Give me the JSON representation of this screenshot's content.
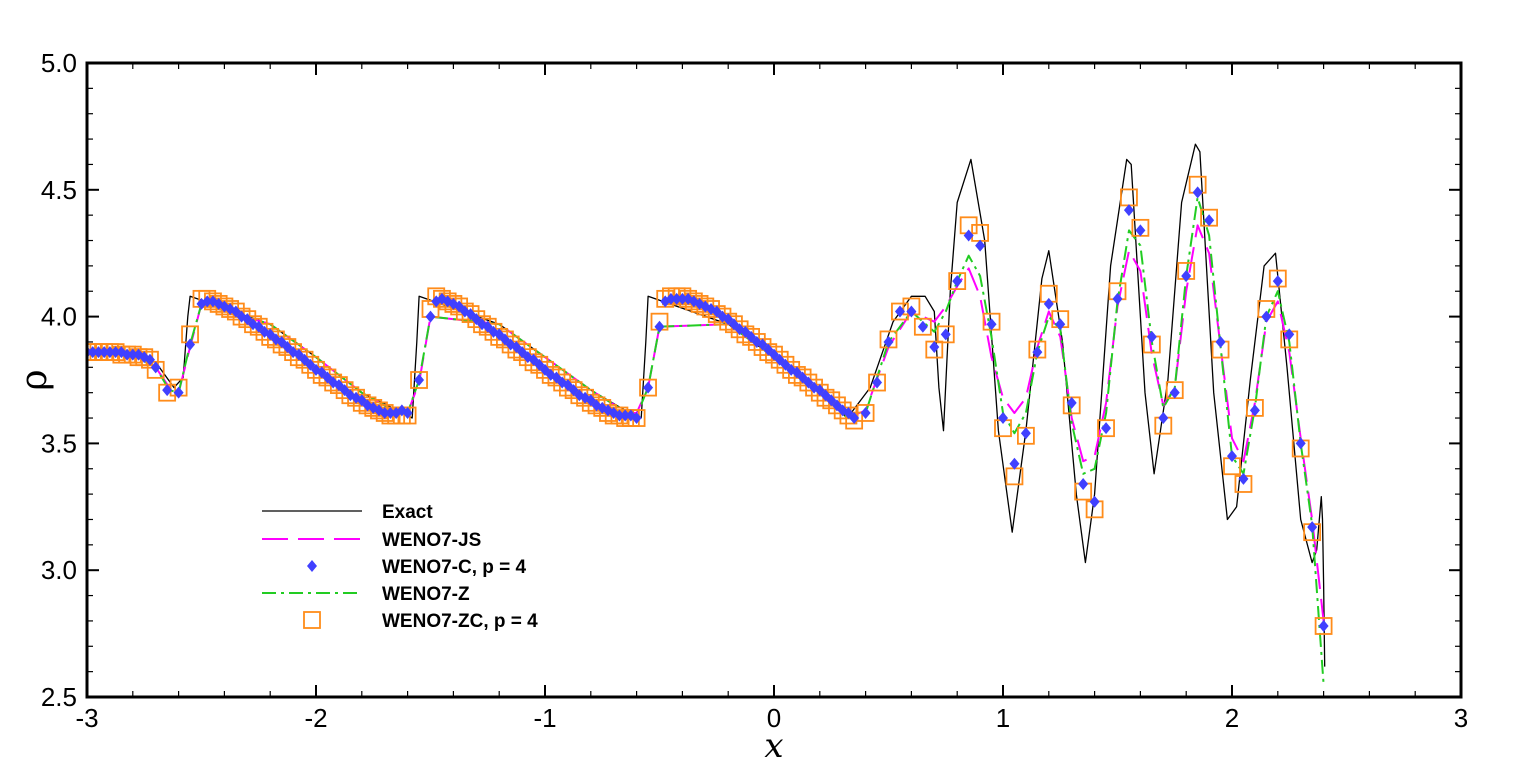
{
  "chart_data": {
    "type": "line",
    "title": "",
    "xlabel": "x",
    "ylabel": "ρ",
    "xlim": [
      -3,
      3
    ],
    "ylim": [
      2.5,
      5.0
    ],
    "x_ticks": [
      "-3",
      "-2",
      "-1",
      "0",
      "1",
      "2",
      "3"
    ],
    "y_ticks": [
      "2.5",
      "3.0",
      "3.5",
      "4.0",
      "4.5",
      "5.0"
    ],
    "grid": false,
    "legend_position": "lower-left",
    "series": [
      {
        "name": "Exact",
        "style": "solid",
        "color": "#000000",
        "x": [
          -3.0,
          -2.8,
          -2.7,
          -2.62,
          -2.58,
          -2.56,
          -2.55,
          -2.2,
          -2.0,
          -1.8,
          -1.62,
          -1.58,
          -1.56,
          -1.55,
          -1.2,
          -1.0,
          -0.8,
          -0.63,
          -0.58,
          -0.56,
          -0.55,
          -0.2,
          0.0,
          0.2,
          0.32,
          0.42,
          0.52,
          0.6,
          0.66,
          0.7,
          0.72,
          0.74,
          0.77,
          0.8,
          0.86,
          0.92,
          0.98,
          1.04,
          1.1,
          1.17,
          1.2,
          1.26,
          1.32,
          1.36,
          1.4,
          1.47,
          1.54,
          1.56,
          1.62,
          1.66,
          1.72,
          1.78,
          1.84,
          1.86,
          1.92,
          1.98,
          2.02,
          2.08,
          2.14,
          2.19,
          2.24,
          2.3,
          2.35,
          2.37,
          2.39,
          2.395,
          2.4,
          2.405
        ],
        "y": [
          3.86,
          3.85,
          3.82,
          3.72,
          3.76,
          4.0,
          4.08,
          3.97,
          3.84,
          3.7,
          3.62,
          3.6,
          3.9,
          4.08,
          3.97,
          3.84,
          3.71,
          3.62,
          3.6,
          3.9,
          4.08,
          3.97,
          3.84,
          3.7,
          3.6,
          3.72,
          3.98,
          4.08,
          4.08,
          4.02,
          3.72,
          3.55,
          4.1,
          4.45,
          4.62,
          4.3,
          3.55,
          3.15,
          3.55,
          4.15,
          4.26,
          3.9,
          3.3,
          3.03,
          3.3,
          4.2,
          4.62,
          4.6,
          3.7,
          3.38,
          3.75,
          4.45,
          4.68,
          4.65,
          3.7,
          3.2,
          3.25,
          3.75,
          4.2,
          4.25,
          3.8,
          3.2,
          3.03,
          3.08,
          3.29,
          3.2,
          2.95,
          2.62
        ]
      },
      {
        "name": "WENO7-JS",
        "style": "long-dash",
        "color": "#ff00ff",
        "x": [
          -3.0,
          -2.8,
          -2.7,
          -2.64,
          -2.6,
          -2.55,
          -2.5,
          -2.2,
          -2.0,
          -1.8,
          -1.64,
          -1.6,
          -1.55,
          -1.5,
          -1.2,
          -1.0,
          -0.8,
          -0.64,
          -0.6,
          -0.55,
          -0.5,
          -0.2,
          0.0,
          0.2,
          0.32,
          0.4,
          0.5,
          0.6,
          0.7,
          0.75,
          0.8,
          0.85,
          0.9,
          0.95,
          1.0,
          1.05,
          1.1,
          1.15,
          1.2,
          1.25,
          1.3,
          1.35,
          1.4,
          1.45,
          1.5,
          1.55,
          1.6,
          1.65,
          1.7,
          1.75,
          1.8,
          1.85,
          1.9,
          1.95,
          2.0,
          2.05,
          2.1,
          2.15,
          2.2,
          2.25,
          2.3,
          2.35,
          2.4
        ],
        "y": [
          3.86,
          3.85,
          3.8,
          3.72,
          3.7,
          3.88,
          4.05,
          3.97,
          3.84,
          3.7,
          3.62,
          3.62,
          3.74,
          4.0,
          3.97,
          3.84,
          3.71,
          3.62,
          3.62,
          3.72,
          3.96,
          3.97,
          3.84,
          3.7,
          3.6,
          3.63,
          3.88,
          4.02,
          3.98,
          4.04,
          4.12,
          4.19,
          4.08,
          3.84,
          3.68,
          3.62,
          3.68,
          3.88,
          4.02,
          3.92,
          3.6,
          3.43,
          3.45,
          3.66,
          4.04,
          4.26,
          4.18,
          3.85,
          3.65,
          3.72,
          4.1,
          4.36,
          4.25,
          3.88,
          3.52,
          3.43,
          3.66,
          3.98,
          4.06,
          3.86,
          3.52,
          3.2,
          2.8
        ]
      },
      {
        "name": "WENO7-C, p = 4",
        "style": "diamond",
        "color": "#4040ff",
        "x": [
          -3.0,
          -2.975,
          -2.95,
          -2.925,
          -2.9,
          -2.875,
          -2.85,
          -2.825,
          -2.8,
          -2.775,
          -2.75,
          -2.725,
          -2.7,
          -2.65,
          -2.6,
          -2.55,
          -2.5,
          -2.475,
          -2.45,
          -2.425,
          -2.4,
          -2.375,
          -2.35,
          -2.325,
          -2.3,
          -2.275,
          -2.25,
          -2.225,
          -2.2,
          -2.175,
          -2.15,
          -2.125,
          -2.1,
          -2.075,
          -2.05,
          -2.025,
          -2.0,
          -1.975,
          -1.95,
          -1.925,
          -1.9,
          -1.875,
          -1.85,
          -1.825,
          -1.8,
          -1.775,
          -1.75,
          -1.725,
          -1.7,
          -1.675,
          -1.65,
          -1.625,
          -1.6,
          -1.55,
          -1.5,
          -1.475,
          -1.45,
          -1.425,
          -1.4,
          -1.375,
          -1.35,
          -1.325,
          -1.3,
          -1.275,
          -1.25,
          -1.225,
          -1.2,
          -1.175,
          -1.15,
          -1.125,
          -1.1,
          -1.075,
          -1.05,
          -1.025,
          -1.0,
          -0.975,
          -0.95,
          -0.925,
          -0.9,
          -0.875,
          -0.85,
          -0.825,
          -0.8,
          -0.775,
          -0.75,
          -0.725,
          -0.7,
          -0.675,
          -0.65,
          -0.625,
          -0.6,
          -0.55,
          -0.5,
          -0.475,
          -0.45,
          -0.425,
          -0.4,
          -0.375,
          -0.35,
          -0.325,
          -0.3,
          -0.275,
          -0.25,
          -0.225,
          -0.2,
          -0.175,
          -0.15,
          -0.125,
          -0.1,
          -0.075,
          -0.05,
          -0.025,
          0.0,
          0.025,
          0.05,
          0.075,
          0.1,
          0.125,
          0.15,
          0.175,
          0.2,
          0.225,
          0.25,
          0.275,
          0.3,
          0.325,
          0.35,
          0.4,
          0.45,
          0.5,
          0.55,
          0.6,
          0.65,
          0.7,
          0.75,
          0.8,
          0.85,
          0.9,
          0.95,
          1.0,
          1.05,
          1.1,
          1.15,
          1.2,
          1.25,
          1.3,
          1.35,
          1.4,
          1.45,
          1.5,
          1.55,
          1.6,
          1.65,
          1.7,
          1.75,
          1.8,
          1.85,
          1.9,
          1.95,
          2.0,
          2.05,
          2.1,
          2.15,
          2.2,
          2.25,
          2.3,
          2.35,
          2.4
        ],
        "y": [
          3.86,
          3.86,
          3.86,
          3.86,
          3.86,
          3.86,
          3.86,
          3.85,
          3.85,
          3.85,
          3.84,
          3.83,
          3.8,
          3.71,
          3.7,
          3.89,
          4.05,
          4.06,
          4.06,
          4.05,
          4.04,
          4.03,
          4.02,
          4.0,
          3.99,
          3.97,
          3.96,
          3.94,
          3.93,
          3.91,
          3.9,
          3.88,
          3.86,
          3.85,
          3.83,
          3.81,
          3.79,
          3.78,
          3.76,
          3.74,
          3.73,
          3.71,
          3.69,
          3.68,
          3.67,
          3.65,
          3.64,
          3.63,
          3.62,
          3.62,
          3.62,
          3.63,
          3.62,
          3.75,
          4.0,
          4.06,
          4.07,
          4.06,
          4.05,
          4.04,
          4.02,
          4.01,
          3.99,
          3.97,
          3.96,
          3.94,
          3.93,
          3.91,
          3.89,
          3.88,
          3.86,
          3.84,
          3.83,
          3.81,
          3.79,
          3.77,
          3.76,
          3.74,
          3.73,
          3.71,
          3.69,
          3.68,
          3.67,
          3.65,
          3.64,
          3.63,
          3.62,
          3.61,
          3.61,
          3.61,
          3.6,
          3.72,
          3.96,
          4.06,
          4.07,
          4.07,
          4.07,
          4.07,
          4.06,
          4.05,
          4.04,
          4.03,
          4.02,
          4.0,
          3.99,
          3.97,
          3.95,
          3.94,
          3.92,
          3.9,
          3.89,
          3.87,
          3.85,
          3.83,
          3.81,
          3.79,
          3.78,
          3.76,
          3.74,
          3.72,
          3.71,
          3.69,
          3.67,
          3.65,
          3.63,
          3.62,
          3.6,
          3.62,
          3.74,
          3.9,
          4.02,
          4.02,
          3.96,
          3.88,
          3.93,
          4.14,
          4.32,
          4.28,
          3.97,
          3.6,
          3.42,
          3.54,
          3.86,
          4.05,
          3.97,
          3.66,
          3.34,
          3.27,
          3.56,
          4.07,
          4.42,
          4.34,
          3.92,
          3.6,
          3.7,
          4.16,
          4.49,
          4.38,
          3.9,
          3.45,
          3.36,
          3.63,
          4.0,
          4.14,
          3.93,
          3.5,
          3.17,
          2.78
        ]
      },
      {
        "name": "WENO7-Z",
        "style": "dash-dot",
        "color": "#22cc22",
        "x": [
          -3.0,
          -2.8,
          -2.7,
          -2.64,
          -2.6,
          -2.55,
          -2.5,
          -2.2,
          -2.0,
          -1.8,
          -1.64,
          -1.6,
          -1.55,
          -1.5,
          -1.2,
          -1.0,
          -0.8,
          -0.64,
          -0.6,
          -0.55,
          -0.5,
          -0.2,
          0.0,
          0.2,
          0.32,
          0.4,
          0.5,
          0.6,
          0.7,
          0.75,
          0.8,
          0.85,
          0.9,
          0.95,
          1.0,
          1.05,
          1.1,
          1.15,
          1.2,
          1.25,
          1.3,
          1.35,
          1.4,
          1.45,
          1.5,
          1.55,
          1.6,
          1.65,
          1.7,
          1.75,
          1.8,
          1.85,
          1.9,
          1.95,
          2.0,
          2.05,
          2.1,
          2.15,
          2.2,
          2.25,
          2.3,
          2.35,
          2.4
        ],
        "y": [
          3.86,
          3.85,
          3.8,
          3.71,
          3.7,
          3.89,
          4.05,
          3.97,
          3.84,
          3.7,
          3.62,
          3.62,
          3.75,
          4.0,
          3.97,
          3.84,
          3.71,
          3.62,
          3.61,
          3.72,
          3.96,
          3.97,
          3.84,
          3.7,
          3.6,
          3.62,
          3.9,
          4.02,
          3.94,
          4.02,
          4.14,
          4.24,
          4.16,
          3.92,
          3.62,
          3.54,
          3.62,
          3.86,
          4.0,
          3.95,
          3.58,
          3.38,
          3.4,
          3.62,
          4.06,
          4.34,
          4.28,
          3.9,
          3.64,
          3.72,
          4.16,
          4.47,
          4.32,
          3.88,
          3.45,
          3.38,
          3.64,
          4.0,
          4.1,
          3.9,
          3.5,
          3.18,
          2.55
        ]
      },
      {
        "name": "WENO7-ZC, p = 4",
        "style": "square",
        "color": "#ff8c1a",
        "x": [
          -3.0,
          -2.975,
          -2.95,
          -2.925,
          -2.9,
          -2.875,
          -2.85,
          -2.825,
          -2.8,
          -2.775,
          -2.75,
          -2.725,
          -2.7,
          -2.65,
          -2.6,
          -2.55,
          -2.5,
          -2.475,
          -2.45,
          -2.425,
          -2.4,
          -2.375,
          -2.35,
          -2.325,
          -2.3,
          -2.275,
          -2.25,
          -2.225,
          -2.2,
          -2.175,
          -2.15,
          -2.125,
          -2.1,
          -2.075,
          -2.05,
          -2.025,
          -2.0,
          -1.975,
          -1.95,
          -1.925,
          -1.9,
          -1.875,
          -1.85,
          -1.825,
          -1.8,
          -1.775,
          -1.75,
          -1.725,
          -1.7,
          -1.675,
          -1.65,
          -1.625,
          -1.6,
          -1.55,
          -1.5,
          -1.475,
          -1.45,
          -1.425,
          -1.4,
          -1.375,
          -1.35,
          -1.325,
          -1.3,
          -1.275,
          -1.25,
          -1.225,
          -1.2,
          -1.175,
          -1.15,
          -1.125,
          -1.1,
          -1.075,
          -1.05,
          -1.025,
          -1.0,
          -0.975,
          -0.95,
          -0.925,
          -0.9,
          -0.875,
          -0.85,
          -0.825,
          -0.8,
          -0.775,
          -0.75,
          -0.725,
          -0.7,
          -0.675,
          -0.65,
          -0.625,
          -0.6,
          -0.55,
          -0.5,
          -0.475,
          -0.45,
          -0.425,
          -0.4,
          -0.375,
          -0.35,
          -0.325,
          -0.3,
          -0.275,
          -0.25,
          -0.225,
          -0.2,
          -0.175,
          -0.15,
          -0.125,
          -0.1,
          -0.075,
          -0.05,
          -0.025,
          0.0,
          0.025,
          0.05,
          0.075,
          0.1,
          0.125,
          0.15,
          0.175,
          0.2,
          0.225,
          0.25,
          0.275,
          0.3,
          0.325,
          0.35,
          0.4,
          0.45,
          0.5,
          0.55,
          0.6,
          0.65,
          0.7,
          0.75,
          0.8,
          0.85,
          0.9,
          0.95,
          1.0,
          1.05,
          1.1,
          1.15,
          1.2,
          1.25,
          1.3,
          1.35,
          1.4,
          1.45,
          1.5,
          1.55,
          1.6,
          1.65,
          1.7,
          1.75,
          1.8,
          1.85,
          1.9,
          1.95,
          2.0,
          2.05,
          2.1,
          2.15,
          2.2,
          2.25,
          2.3,
          2.35,
          2.4
        ],
        "y": [
          3.86,
          3.86,
          3.86,
          3.86,
          3.86,
          3.86,
          3.85,
          3.85,
          3.85,
          3.84,
          3.84,
          3.83,
          3.79,
          3.7,
          3.72,
          3.93,
          4.07,
          4.07,
          4.06,
          4.05,
          4.04,
          4.03,
          4.02,
          4.0,
          3.99,
          3.97,
          3.96,
          3.94,
          3.92,
          3.91,
          3.89,
          3.88,
          3.86,
          3.84,
          3.83,
          3.81,
          3.79,
          3.77,
          3.76,
          3.74,
          3.73,
          3.71,
          3.69,
          3.68,
          3.66,
          3.65,
          3.64,
          3.63,
          3.62,
          3.61,
          3.61,
          3.61,
          3.61,
          3.75,
          4.03,
          4.08,
          4.07,
          4.06,
          4.05,
          4.04,
          4.02,
          4.01,
          3.99,
          3.97,
          3.96,
          3.94,
          3.92,
          3.91,
          3.89,
          3.87,
          3.86,
          3.84,
          3.82,
          3.81,
          3.79,
          3.77,
          3.76,
          3.74,
          3.72,
          3.71,
          3.69,
          3.68,
          3.66,
          3.65,
          3.64,
          3.62,
          3.61,
          3.61,
          3.6,
          3.6,
          3.6,
          3.72,
          3.98,
          4.07,
          4.08,
          4.08,
          4.08,
          4.07,
          4.06,
          4.05,
          4.04,
          4.03,
          4.01,
          4.0,
          3.98,
          3.97,
          3.95,
          3.93,
          3.92,
          3.9,
          3.88,
          3.86,
          3.85,
          3.83,
          3.81,
          3.79,
          3.77,
          3.76,
          3.74,
          3.72,
          3.7,
          3.68,
          3.67,
          3.65,
          3.63,
          3.61,
          3.59,
          3.62,
          3.74,
          3.91,
          4.02,
          4.04,
          3.96,
          3.87,
          3.93,
          4.14,
          4.36,
          4.33,
          3.98,
          3.56,
          3.37,
          3.53,
          3.87,
          4.09,
          3.99,
          3.65,
          3.31,
          3.24,
          3.56,
          4.1,
          4.47,
          4.35,
          3.89,
          3.57,
          3.71,
          4.18,
          4.52,
          4.39,
          3.87,
          3.41,
          3.34,
          3.64,
          4.03,
          4.15,
          3.91,
          3.48,
          3.15,
          2.78
        ]
      }
    ]
  }
}
